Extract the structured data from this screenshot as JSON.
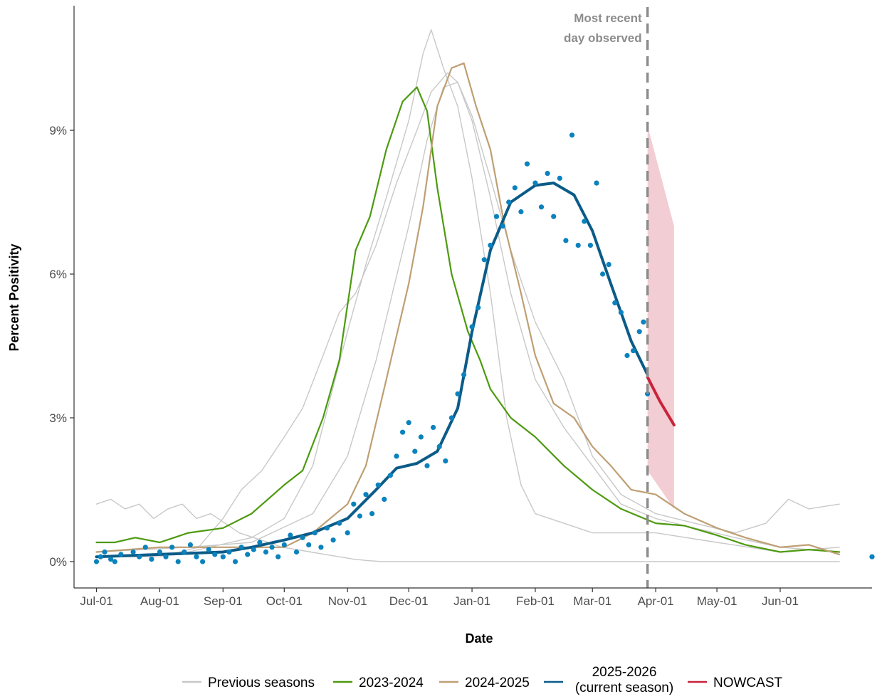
{
  "chart_data": {
    "type": "line",
    "xlabel": "Date",
    "ylabel": "Percent Positivity",
    "x_ticks": [
      "Jul-01",
      "Aug-01",
      "Sep-01",
      "Oct-01",
      "Nov-01",
      "Dec-01",
      "Jan-01",
      "Feb-01",
      "Mar-01",
      "Apr-01",
      "May-01",
      "Jun-01"
    ],
    "y_ticks": [
      "0%",
      "3%",
      "6%",
      "9%"
    ],
    "y_tick_values": [
      0,
      3,
      6,
      9
    ],
    "ylim": [
      -0.55,
      11.6
    ],
    "xlim": [
      "Jun-20",
      "Jul-16"
    ],
    "grid": false,
    "legend_position": "bottom",
    "annotation": {
      "lines": [
        "Most recent",
        "day observed"
      ],
      "date": "Mar-28"
    },
    "colors": {
      "previous": "#c8c8c8",
      "s2023": "#4d9a0f",
      "s2024": "#bf9f74",
      "current_line": "#0b5b88",
      "current_points": "#0a82bd",
      "nowcast": "#c8243a",
      "band": "#f2cdd3",
      "vline": "#8c8c8c"
    },
    "legend": [
      {
        "key": "previous",
        "lines": [
          "Previous seasons"
        ]
      },
      {
        "key": "s2023",
        "lines": [
          "2023-2024"
        ]
      },
      {
        "key": "s2024",
        "lines": [
          "2024-2025"
        ]
      },
      {
        "key": "current_line",
        "lines": [
          "2025-2026",
          "(current season)"
        ]
      },
      {
        "key": "nowcast",
        "lines": [
          "NOWCAST"
        ]
      }
    ],
    "series": [
      {
        "key": "previous",
        "points": [
          [
            "Jul-01",
            1.2
          ],
          [
            "Jul-08",
            1.3
          ],
          [
            "Jul-15",
            1.1
          ],
          [
            "Jul-22",
            1.2
          ],
          [
            "Jul-29",
            0.9
          ],
          [
            "Aug-05",
            1.1
          ],
          [
            "Aug-12",
            1.2
          ],
          [
            "Aug-19",
            0.9
          ],
          [
            "Aug-26",
            1.0
          ],
          [
            "Sep-02",
            0.8
          ],
          [
            "Sep-09",
            0.6
          ],
          [
            "Sep-16",
            0.5
          ],
          [
            "Sep-23",
            0.4
          ],
          [
            "Sep-30",
            0.3
          ],
          [
            "Oct-07",
            0.25
          ],
          [
            "Oct-14",
            0.2
          ],
          [
            "Oct-21",
            0.15
          ],
          [
            "Oct-28",
            0.1
          ],
          [
            "Nov-04",
            0.05
          ],
          [
            "Nov-11",
            0.02
          ],
          [
            "Nov-18",
            0.0
          ],
          [
            "Dec-15",
            0.0
          ],
          [
            "Jan-15",
            0.0
          ],
          [
            "Feb-15",
            0.0
          ],
          [
            "Mar-15",
            0.0
          ],
          [
            "Apr-15",
            0.0
          ],
          [
            "May-15",
            0.0
          ],
          [
            "Jun-01",
            0.0
          ],
          [
            "Jun-30",
            0.0
          ]
        ]
      },
      {
        "key": "previous",
        "points": [
          [
            "Jul-01",
            0.1
          ],
          [
            "Aug-01",
            0.1
          ],
          [
            "Aug-20",
            0.3
          ],
          [
            "Sep-01",
            0.9
          ],
          [
            "Sep-10",
            1.5
          ],
          [
            "Sep-20",
            1.9
          ],
          [
            "Oct-01",
            2.6
          ],
          [
            "Oct-10",
            3.2
          ],
          [
            "Oct-20",
            4.3
          ],
          [
            "Oct-28",
            5.2
          ],
          [
            "Nov-05",
            5.6
          ],
          [
            "Nov-15",
            6.6
          ],
          [
            "Nov-25",
            7.9
          ],
          [
            "Dec-05",
            9.0
          ],
          [
            "Dec-12",
            9.8
          ],
          [
            "Dec-20",
            10.2
          ],
          [
            "Dec-25",
            10.0
          ],
          [
            "Jan-01",
            9.2
          ],
          [
            "Jan-10",
            7.6
          ],
          [
            "Jan-20",
            5.6
          ],
          [
            "Feb-01",
            3.8
          ],
          [
            "Feb-15",
            2.8
          ],
          [
            "Mar-01",
            2.0
          ],
          [
            "Mar-15",
            1.2
          ],
          [
            "Apr-01",
            0.9
          ],
          [
            "Apr-20",
            0.7
          ],
          [
            "May-10",
            0.5
          ],
          [
            "Jun-01",
            0.3
          ],
          [
            "Jun-30",
            0.2
          ]
        ]
      },
      {
        "key": "previous",
        "points": [
          [
            "Jul-01",
            0.1
          ],
          [
            "Aug-15",
            0.2
          ],
          [
            "Sep-15",
            0.5
          ],
          [
            "Oct-01",
            0.9
          ],
          [
            "Oct-15",
            2.0
          ],
          [
            "Nov-01",
            4.8
          ],
          [
            "Nov-10",
            6.2
          ],
          [
            "Nov-20",
            7.6
          ],
          [
            "Dec-01",
            9.2
          ],
          [
            "Dec-08",
            10.6
          ],
          [
            "Dec-12",
            11.1
          ],
          [
            "Dec-18",
            10.3
          ],
          [
            "Dec-25",
            9.5
          ],
          [
            "Jan-01",
            8.0
          ],
          [
            "Jan-10",
            5.6
          ],
          [
            "Jan-18",
            3.0
          ],
          [
            "Jan-25",
            1.6
          ],
          [
            "Feb-01",
            1.0
          ],
          [
            "Feb-15",
            0.8
          ],
          [
            "Mar-01",
            0.6
          ],
          [
            "Apr-01",
            0.6
          ],
          [
            "May-01",
            0.4
          ],
          [
            "Jun-01",
            0.2
          ],
          [
            "Jun-30",
            0.3
          ]
        ]
      },
      {
        "key": "previous",
        "points": [
          [
            "Jul-01",
            0.2
          ],
          [
            "Aug-15",
            0.3
          ],
          [
            "Sep-15",
            0.4
          ],
          [
            "Oct-15",
            1.0
          ],
          [
            "Nov-01",
            2.2
          ],
          [
            "Nov-15",
            4.2
          ],
          [
            "Dec-01",
            7.0
          ],
          [
            "Dec-10",
            8.8
          ],
          [
            "Dec-18",
            9.9
          ],
          [
            "Dec-25",
            10.0
          ],
          [
            "Jan-01",
            9.3
          ],
          [
            "Jan-10",
            8.0
          ],
          [
            "Jan-20",
            6.5
          ],
          [
            "Feb-01",
            5.0
          ],
          [
            "Feb-15",
            3.8
          ],
          [
            "Mar-01",
            2.2
          ],
          [
            "Mar-15",
            1.4
          ],
          [
            "Apr-01",
            1.0
          ],
          [
            "Apr-20",
            0.8
          ],
          [
            "May-10",
            0.6
          ],
          [
            "May-25",
            0.8
          ],
          [
            "Jun-05",
            1.3
          ],
          [
            "Jun-15",
            1.1
          ],
          [
            "Jun-30",
            1.2
          ]
        ]
      },
      {
        "key": "s2023",
        "points": [
          [
            "Jul-01",
            0.4
          ],
          [
            "Jul-10",
            0.4
          ],
          [
            "Jul-20",
            0.5
          ],
          [
            "Aug-01",
            0.4
          ],
          [
            "Aug-15",
            0.6
          ],
          [
            "Sep-01",
            0.7
          ],
          [
            "Sep-15",
            1.0
          ],
          [
            "Oct-01",
            1.6
          ],
          [
            "Oct-10",
            1.9
          ],
          [
            "Oct-20",
            3.0
          ],
          [
            "Oct-28",
            4.2
          ],
          [
            "Nov-05",
            6.5
          ],
          [
            "Nov-12",
            7.2
          ],
          [
            "Nov-20",
            8.6
          ],
          [
            "Nov-28",
            9.6
          ],
          [
            "Dec-05",
            9.9
          ],
          [
            "Dec-10",
            9.4
          ],
          [
            "Dec-15",
            7.8
          ],
          [
            "Dec-22",
            6.0
          ],
          [
            "Dec-30",
            4.8
          ],
          [
            "Jan-05",
            4.2
          ],
          [
            "Jan-10",
            3.6
          ],
          [
            "Jan-20",
            3.0
          ],
          [
            "Feb-01",
            2.6
          ],
          [
            "Feb-15",
            2.0
          ],
          [
            "Mar-01",
            1.5
          ],
          [
            "Mar-15",
            1.1
          ],
          [
            "Apr-01",
            0.8
          ],
          [
            "Apr-15",
            0.75
          ],
          [
            "May-01",
            0.55
          ],
          [
            "May-15",
            0.35
          ],
          [
            "Jun-01",
            0.2
          ],
          [
            "Jun-15",
            0.25
          ],
          [
            "Jun-30",
            0.2
          ]
        ]
      },
      {
        "key": "s2024",
        "points": [
          [
            "Jul-01",
            0.2
          ],
          [
            "Aug-01",
            0.3
          ],
          [
            "Sep-01",
            0.3
          ],
          [
            "Oct-01",
            0.3
          ],
          [
            "Oct-15",
            0.6
          ],
          [
            "Nov-01",
            1.2
          ],
          [
            "Nov-10",
            2.0
          ],
          [
            "Nov-20",
            3.8
          ],
          [
            "Dec-01",
            5.8
          ],
          [
            "Dec-08",
            7.4
          ],
          [
            "Dec-15",
            9.5
          ],
          [
            "Dec-22",
            10.3
          ],
          [
            "Dec-28",
            10.4
          ],
          [
            "Jan-03",
            9.5
          ],
          [
            "Jan-10",
            8.6
          ],
          [
            "Jan-17",
            7.0
          ],
          [
            "Jan-25",
            5.6
          ],
          [
            "Feb-01",
            4.3
          ],
          [
            "Feb-10",
            3.3
          ],
          [
            "Feb-20",
            3.0
          ],
          [
            "Mar-01",
            2.4
          ],
          [
            "Mar-10",
            2.0
          ],
          [
            "Mar-20",
            1.5
          ],
          [
            "Apr-01",
            1.4
          ],
          [
            "Apr-15",
            1.0
          ],
          [
            "May-01",
            0.7
          ],
          [
            "May-15",
            0.5
          ],
          [
            "Jun-01",
            0.3
          ],
          [
            "Jun-15",
            0.35
          ],
          [
            "Jun-30",
            0.15
          ]
        ]
      },
      {
        "key": "current_line",
        "points": [
          [
            "Jul-01",
            0.1
          ],
          [
            "Aug-01",
            0.15
          ],
          [
            "Sep-01",
            0.2
          ],
          [
            "Sep-15",
            0.3
          ],
          [
            "Oct-01",
            0.45
          ],
          [
            "Oct-15",
            0.6
          ],
          [
            "Nov-01",
            0.9
          ],
          [
            "Nov-15",
            1.5
          ],
          [
            "Nov-25",
            1.95
          ],
          [
            "Dec-05",
            2.05
          ],
          [
            "Dec-15",
            2.3
          ],
          [
            "Dec-25",
            3.2
          ],
          [
            "Jan-01",
            4.8
          ],
          [
            "Jan-10",
            6.5
          ],
          [
            "Jan-20",
            7.5
          ],
          [
            "Feb-01",
            7.85
          ],
          [
            "Feb-10",
            7.9
          ],
          [
            "Feb-20",
            7.65
          ],
          [
            "Mar-01",
            6.9
          ],
          [
            "Mar-10",
            5.8
          ],
          [
            "Mar-20",
            4.6
          ],
          [
            "Mar-28",
            3.9
          ]
        ]
      },
      {
        "key": "nowcast",
        "points": [
          [
            "Mar-28",
            3.85
          ],
          [
            "Apr-03",
            3.35
          ],
          [
            "Apr-10",
            2.85
          ]
        ]
      }
    ],
    "nowcast_band": {
      "upper": [
        [
          "Mar-28",
          9.1
        ],
        [
          "Apr-10",
          7.0
        ]
      ],
      "lower": [
        [
          "Mar-28",
          1.9
        ],
        [
          "Apr-10",
          1.1
        ]
      ]
    },
    "current_points": [
      [
        "Jul-01",
        0.0
      ],
      [
        "Jul-03",
        0.1
      ],
      [
        "Jul-05",
        0.2
      ],
      [
        "Jul-08",
        0.05
      ],
      [
        "Jul-10",
        0.0
      ],
      [
        "Jul-13",
        0.15
      ],
      [
        "Jul-16",
        0.1
      ],
      [
        "Jul-19",
        0.2
      ],
      [
        "Jul-22",
        0.1
      ],
      [
        "Jul-25",
        0.3
      ],
      [
        "Jul-28",
        0.05
      ],
      [
        "Aug-01",
        0.2
      ],
      [
        "Aug-04",
        0.1
      ],
      [
        "Aug-07",
        0.3
      ],
      [
        "Aug-10",
        0.0
      ],
      [
        "Aug-13",
        0.2
      ],
      [
        "Aug-16",
        0.35
      ],
      [
        "Aug-19",
        0.1
      ],
      [
        "Aug-22",
        0.0
      ],
      [
        "Aug-25",
        0.25
      ],
      [
        "Aug-28",
        0.15
      ],
      [
        "Sep-01",
        0.1
      ],
      [
        "Sep-04",
        0.2
      ],
      [
        "Sep-07",
        0.0
      ],
      [
        "Sep-10",
        0.3
      ],
      [
        "Sep-13",
        0.15
      ],
      [
        "Sep-16",
        0.25
      ],
      [
        "Sep-19",
        0.4
      ],
      [
        "Sep-22",
        0.2
      ],
      [
        "Sep-25",
        0.3
      ],
      [
        "Sep-28",
        0.1
      ],
      [
        "Oct-01",
        0.35
      ],
      [
        "Oct-04",
        0.55
      ],
      [
        "Oct-07",
        0.2
      ],
      [
        "Oct-10",
        0.5
      ],
      [
        "Oct-13",
        0.35
      ],
      [
        "Oct-16",
        0.6
      ],
      [
        "Oct-19",
        0.3
      ],
      [
        "Oct-22",
        0.7
      ],
      [
        "Oct-25",
        0.45
      ],
      [
        "Oct-28",
        0.8
      ],
      [
        "Nov-01",
        0.6
      ],
      [
        "Nov-04",
        1.2
      ],
      [
        "Nov-07",
        0.95
      ],
      [
        "Nov-10",
        1.4
      ],
      [
        "Nov-13",
        1.0
      ],
      [
        "Nov-16",
        1.6
      ],
      [
        "Nov-19",
        1.3
      ],
      [
        "Nov-22",
        1.8
      ],
      [
        "Nov-25",
        2.2
      ],
      [
        "Nov-28",
        2.7
      ],
      [
        "Dec-01",
        2.9
      ],
      [
        "Dec-04",
        2.3
      ],
      [
        "Dec-07",
        2.6
      ],
      [
        "Dec-10",
        2.0
      ],
      [
        "Dec-13",
        2.8
      ],
      [
        "Dec-16",
        2.4
      ],
      [
        "Dec-19",
        2.1
      ],
      [
        "Dec-22",
        3.0
      ],
      [
        "Dec-25",
        3.5
      ],
      [
        "Dec-28",
        3.9
      ],
      [
        "Jan-01",
        4.9
      ],
      [
        "Jan-04",
        5.3
      ],
      [
        "Jan-07",
        6.3
      ],
      [
        "Jan-10",
        6.6
      ],
      [
        "Jan-13",
        7.2
      ],
      [
        "Jan-16",
        7.0
      ],
      [
        "Jan-19",
        7.5
      ],
      [
        "Jan-22",
        7.8
      ],
      [
        "Jan-25",
        7.3
      ],
      [
        "Jan-28",
        8.3
      ],
      [
        "Feb-01",
        7.9
      ],
      [
        "Feb-04",
        7.4
      ],
      [
        "Feb-07",
        8.1
      ],
      [
        "Feb-10",
        7.2
      ],
      [
        "Feb-13",
        8.0
      ],
      [
        "Feb-16",
        6.7
      ],
      [
        "Feb-19",
        8.9
      ],
      [
        "Feb-22",
        6.6
      ],
      [
        "Feb-25",
        7.1
      ],
      [
        "Feb-28",
        6.6
      ],
      [
        "Mar-03",
        7.9
      ],
      [
        "Mar-06",
        6.0
      ],
      [
        "Mar-09",
        6.2
      ],
      [
        "Mar-12",
        5.4
      ],
      [
        "Mar-15",
        5.2
      ],
      [
        "Mar-18",
        4.3
      ],
      [
        "Mar-21",
        4.4
      ],
      [
        "Mar-24",
        4.8
      ],
      [
        "Mar-26",
        5.0
      ],
      [
        "Mar-28",
        3.5
      ]
    ]
  }
}
